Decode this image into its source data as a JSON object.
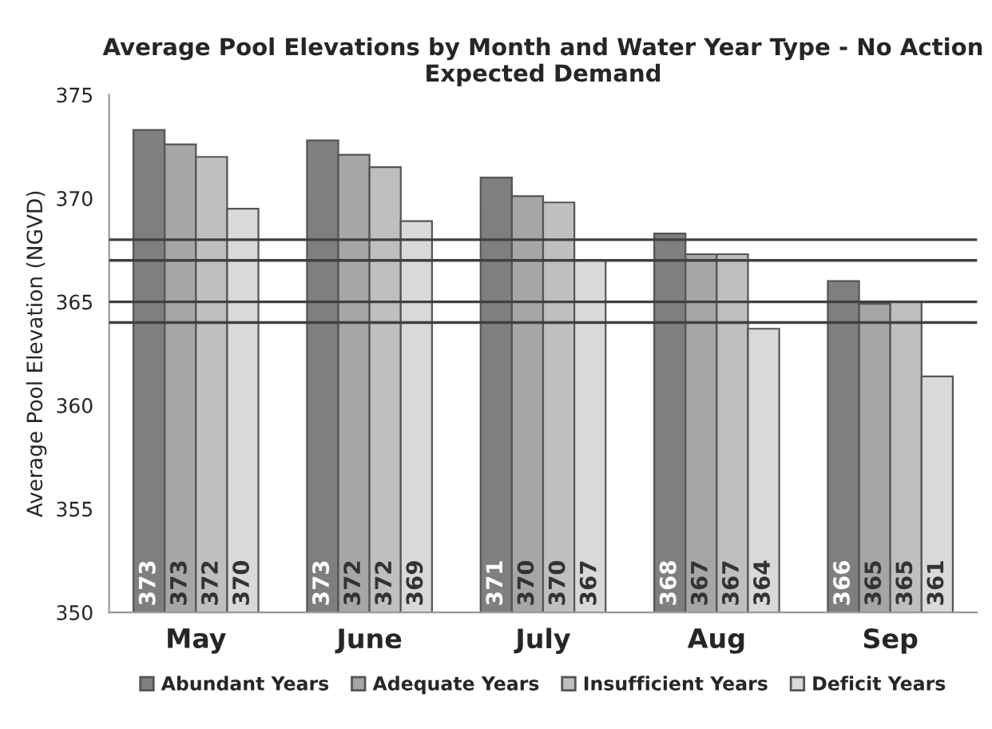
{
  "chart_data": {
    "type": "bar",
    "title": "Average Pool Elevations by Month and Water Year Type - No Action\nExpected Demand",
    "ylabel": "Average Pool Elevation (NGVD)",
    "categories": [
      "May",
      "June",
      "July",
      "Aug",
      "Sep"
    ],
    "series": [
      {
        "name": "Abundant Years",
        "color": "#7f7f7f",
        "values": [
          373.3,
          372.8,
          371.0,
          368.3,
          366.0
        ],
        "value_labels": [
          "373",
          "373",
          "371",
          "368",
          "366"
        ]
      },
      {
        "name": "Adequate Years",
        "color": "#a6a6a6",
        "values": [
          372.6,
          372.1,
          370.1,
          367.3,
          364.9
        ],
        "value_labels": [
          "373",
          "372",
          "370",
          "367",
          "365"
        ]
      },
      {
        "name": "Insufficient Years",
        "color": "#bfbfbf",
        "values": [
          372.0,
          371.5,
          369.8,
          367.3,
          365.0
        ],
        "value_labels": [
          "372",
          "372",
          "370",
          "367",
          "365"
        ]
      },
      {
        "name": "Deficit Years",
        "color": "#d9d9d9",
        "values": [
          369.5,
          368.9,
          367.0,
          363.7,
          361.4
        ],
        "value_labels": [
          "370",
          "369",
          "367",
          "364",
          "361"
        ]
      }
    ],
    "ylim": [
      350,
      375
    ],
    "yticks": [
      350,
      355,
      360,
      365,
      370,
      375
    ],
    "grid": false,
    "legend": "bottom",
    "ref_lines": [
      {
        "axis": "y",
        "value": 368,
        "label": null,
        "color": "#404040"
      },
      {
        "axis": "y",
        "value": 367,
        "label": null,
        "color": "#404040"
      },
      {
        "axis": "y",
        "value": 365,
        "label": null,
        "color": "#404040"
      },
      {
        "axis": "y",
        "value": 364,
        "label": null,
        "color": "#404040"
      }
    ]
  }
}
